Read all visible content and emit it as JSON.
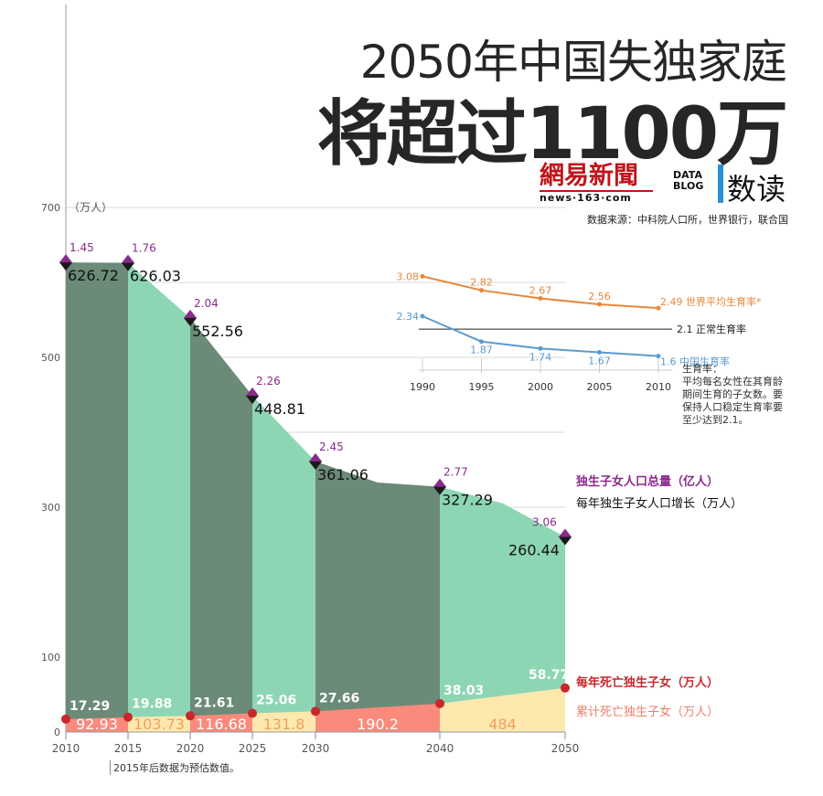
{
  "title": {
    "line1": "2050年中国失独家庭",
    "line2": "将超过1100万"
  },
  "logos": {
    "brand": "網易新聞",
    "brand_url": "news·163·com",
    "datablog_line1": "DATA",
    "datablog_line2": "BLOG",
    "datablog_name": "数读"
  },
  "source": "数据来源：中科院人口所，世界银行，联合国",
  "footnote": "2015年后数据为预估数值。",
  "rate_note": "生育率：\n平均每名女性在其育龄期间生育的子女数。要保持人口稳定生育率要至少达到2.1。",
  "legend": {
    "total": "独生子女人口总量（亿人）",
    "growth": "每年独生子女人口增长（万人）",
    "deaths": "每年死亡独生子女（万人）",
    "cumulative": "累计死亡独生子女（万人）"
  },
  "colors": {
    "dark_green": "#6b8a78",
    "light_green": "#8dd6b4",
    "salmon": "#f98a7c",
    "cream": "#fde9ae",
    "death_dot": "#c8282c",
    "diamond_purple": "#8a2a8c",
    "orange": "#e9873a",
    "blue": "#5b9bd0",
    "title": "#262626"
  },
  "chart_data": [
    {
      "type": "area",
      "ylabel": "（万人）",
      "ylim": [
        0,
        700
      ],
      "y_ticks": [
        0,
        100,
        300,
        500,
        700
      ],
      "x_ticks": [
        2010,
        2015,
        2020,
        2025,
        2030,
        2040,
        2050
      ],
      "grid": true,
      "series": [
        {
          "name": "每年独生子女人口增长（万人）",
          "x": [
            2010,
            2015,
            2020,
            2025,
            2030,
            2035,
            2040,
            2045,
            2050
          ],
          "values": [
            626.72,
            626.03,
            552.56,
            448.81,
            361.06,
            333,
            327.29,
            305,
            260.44
          ],
          "labels": [
            {
              "x": 2010,
              "y": 626.72,
              "text": "626.72"
            },
            {
              "x": 2015,
              "y": 626.03,
              "text": "626.03"
            },
            {
              "x": 2020,
              "y": 552.56,
              "text": "552.56"
            },
            {
              "x": 2025,
              "y": 448.81,
              "text": "448.81"
            },
            {
              "x": 2030,
              "y": 361.06,
              "text": "361.06"
            },
            {
              "x": 2040,
              "y": 327.29,
              "text": "327.29"
            },
            {
              "x": 2050,
              "y": 260.44,
              "text": "260.44"
            }
          ]
        },
        {
          "name": "独生子女人口总量（亿人）",
          "x": [
            2010,
            2015,
            2020,
            2025,
            2030,
            2040,
            2050
          ],
          "values": [
            1.45,
            1.76,
            2.04,
            2.26,
            2.45,
            2.77,
            3.06
          ]
        },
        {
          "name": "每年死亡独生子女（万人）",
          "x": [
            2010,
            2015,
            2020,
            2025,
            2030,
            2040,
            2050
          ],
          "values": [
            17.29,
            19.88,
            21.61,
            25.06,
            27.66,
            38.03,
            58.77
          ]
        },
        {
          "name": "累计死亡独生子女（万人）",
          "periods": [
            {
              "from": 2010,
              "to": 2015,
              "value": 92.93
            },
            {
              "from": 2015,
              "to": 2020,
              "value": 103.73
            },
            {
              "from": 2020,
              "to": 2025,
              "value": 116.68
            },
            {
              "from": 2025,
              "to": 2030,
              "value": 131.8
            },
            {
              "from": 2030,
              "to": 2040,
              "value": 190.2
            },
            {
              "from": 2040,
              "to": 2050,
              "value": 484
            }
          ]
        }
      ]
    },
    {
      "type": "line",
      "x": [
        1990,
        1995,
        2000,
        2005,
        2010
      ],
      "ylim": [
        1.4,
        3.2
      ],
      "series": [
        {
          "name": "世界平均生育率*",
          "values": [
            3.08,
            2.82,
            2.67,
            2.56,
            2.49
          ],
          "color": "#e9873a"
        },
        {
          "name": "中国生育率",
          "values": [
            2.34,
            1.87,
            1.74,
            1.67,
            1.6
          ],
          "color": "#5b9bd0"
        }
      ],
      "reference_line": {
        "value": 2.1,
        "label": "正常生育率"
      }
    }
  ]
}
